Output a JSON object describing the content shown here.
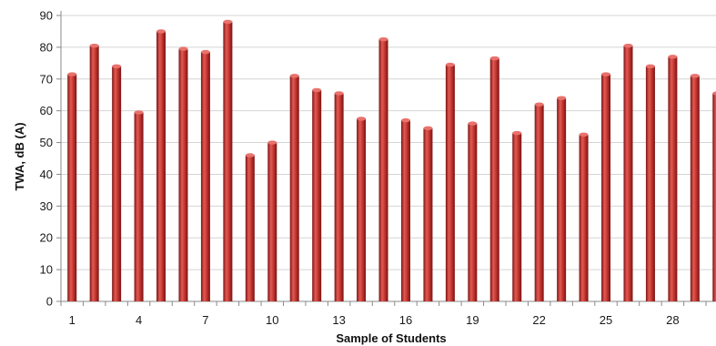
{
  "chart_data": {
    "type": "bar",
    "title": "",
    "xlabel": "Sample of Students",
    "ylabel": "TWA, dB (A)",
    "ylim": [
      0,
      90
    ],
    "yticks": [
      0,
      10,
      20,
      30,
      40,
      50,
      60,
      70,
      80,
      90
    ],
    "xtick_labels": [
      "1",
      "4",
      "7",
      "10",
      "13",
      "16",
      "19",
      "22",
      "25",
      "28"
    ],
    "xtick_positions": [
      1,
      4,
      7,
      10,
      13,
      16,
      19,
      22,
      25,
      28
    ],
    "grid": true,
    "legend": "none",
    "bar_color": "#b22222",
    "categories": [
      1,
      2,
      3,
      4,
      5,
      6,
      7,
      8,
      9,
      10,
      11,
      12,
      13,
      14,
      15,
      16,
      17,
      18,
      19,
      20,
      21,
      22,
      23,
      24,
      25,
      26,
      27,
      28,
      29,
      30
    ],
    "values": [
      71.5,
      80.5,
      74,
      59.5,
      85,
      79.5,
      78.5,
      88,
      46,
      50,
      71,
      66.5,
      65.5,
      57.5,
      82.5,
      57,
      54.5,
      74.5,
      56,
      76.5,
      53,
      62,
      64,
      52.5,
      71.5,
      80.5,
      74,
      77,
      71,
      65.5
    ]
  }
}
